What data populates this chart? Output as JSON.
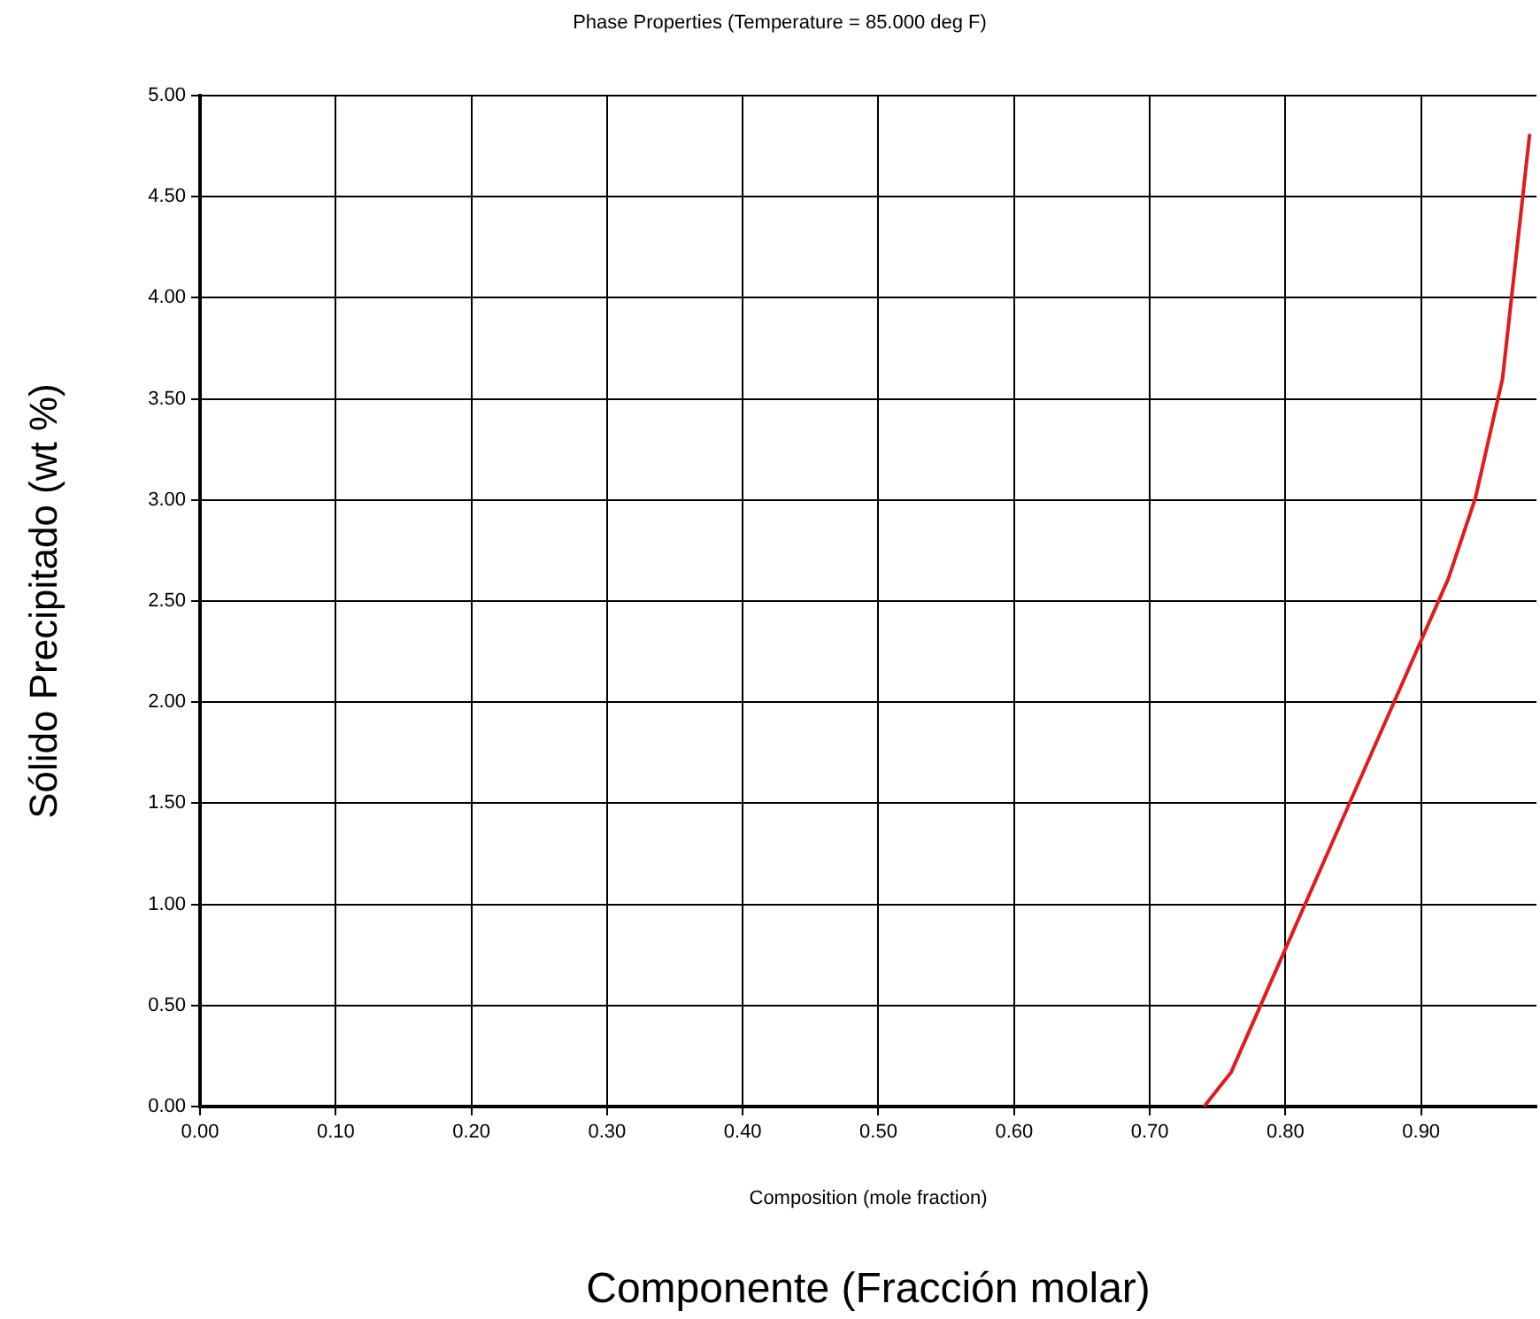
{
  "chart_data": {
    "type": "line",
    "title": "Phase Properties (Temperature = 85.000 deg F)",
    "xlabel": "Composition (mole fraction)",
    "ylabel": "Sólido Precipitado (wt %)",
    "annotations": [
      "Componente (Fracción molar)"
    ],
    "x": [
      0.74,
      0.76,
      0.8,
      0.88,
      0.92,
      0.94,
      0.96,
      0.98
    ],
    "series": [
      {
        "color": "#e31a1c",
        "values": [
          0,
          0.17,
          0.78,
          2.0,
          2.61,
          3.01,
          3.6,
          4.81
        ]
      }
    ],
    "xlim": [
      0,
      0.985
    ],
    "ylim": [
      0,
      5
    ],
    "xticks": [
      {
        "value": 0,
        "label": "0.00"
      },
      {
        "value": 0.1,
        "label": "0.10"
      },
      {
        "value": 0.2,
        "label": "0.20"
      },
      {
        "value": 0.3,
        "label": "0.30"
      },
      {
        "value": 0.4,
        "label": "0.40"
      },
      {
        "value": 0.5,
        "label": "0.50"
      },
      {
        "value": 0.6,
        "label": "0.60"
      },
      {
        "value": 0.7,
        "label": "0.70"
      },
      {
        "value": 0.8,
        "label": "0.80"
      },
      {
        "value": 0.9,
        "label": "0.90"
      }
    ],
    "yticks": [
      {
        "value": 0,
        "label": "0.00"
      },
      {
        "value": 0.5,
        "label": "0.50"
      },
      {
        "value": 1,
        "label": "1.00"
      },
      {
        "value": 1.5,
        "label": "1.50"
      },
      {
        "value": 2,
        "label": "2.00"
      },
      {
        "value": 2.5,
        "label": "2.50"
      },
      {
        "value": 3,
        "label": "3.00"
      },
      {
        "value": 3.5,
        "label": "3.50"
      },
      {
        "value": 4,
        "label": "4.00"
      },
      {
        "value": 4.5,
        "label": "4.50"
      },
      {
        "value": 5,
        "label": "5.00"
      }
    ],
    "grid": true,
    "legend": false,
    "marker": "none",
    "line_style": "solid"
  }
}
